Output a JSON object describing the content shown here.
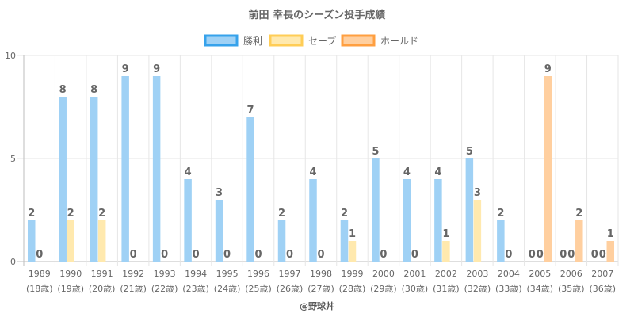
{
  "chart_data": {
    "type": "bar",
    "title": "前田 幸長のシーズン投手成績",
    "categories": [
      "1989",
      "1990",
      "1991",
      "1992",
      "1993",
      "1994",
      "1995",
      "1996",
      "1997",
      "1998",
      "1999",
      "2000",
      "2001",
      "2002",
      "2003",
      "2004",
      "2005",
      "2006",
      "2007"
    ],
    "ages": [
      "(18歳)",
      "(19歳)",
      "(20歳)",
      "(21歳)",
      "(22歳)",
      "(23歳)",
      "(24歳)",
      "(25歳)",
      "(26歳)",
      "(27歳)",
      "(28歳)",
      "(29歳)",
      "(30歳)",
      "(31歳)",
      "(32歳)",
      "(33歳)",
      "(34歳)",
      "(35歳)",
      "(36歳)"
    ],
    "series": [
      {
        "name": "勝利",
        "fill": "#9fd1f5",
        "stroke": "#36a2eb",
        "values": [
          2,
          8,
          8,
          9,
          9,
          4,
          3,
          7,
          2,
          4,
          2,
          5,
          4,
          4,
          5,
          2,
          0,
          0,
          0
        ]
      },
      {
        "name": "セーブ",
        "fill": "#ffe9ae",
        "stroke": "#ffcd56",
        "values": [
          0,
          2,
          2,
          0,
          0,
          0,
          0,
          0,
          0,
          0,
          1,
          0,
          0,
          1,
          3,
          0,
          0,
          0,
          0
        ]
      },
      {
        "name": "ホールド",
        "fill": "#ffcf9f",
        "stroke": "#ff9f40",
        "values": [
          null,
          null,
          null,
          null,
          null,
          null,
          null,
          null,
          null,
          null,
          null,
          null,
          null,
          null,
          null,
          null,
          9,
          2,
          1
        ]
      }
    ],
    "ylim": [
      0,
      10
    ],
    "yticks": [
      0,
      5,
      10
    ],
    "grid": true,
    "legend": "top-center",
    "credit": "@野球丼"
  }
}
